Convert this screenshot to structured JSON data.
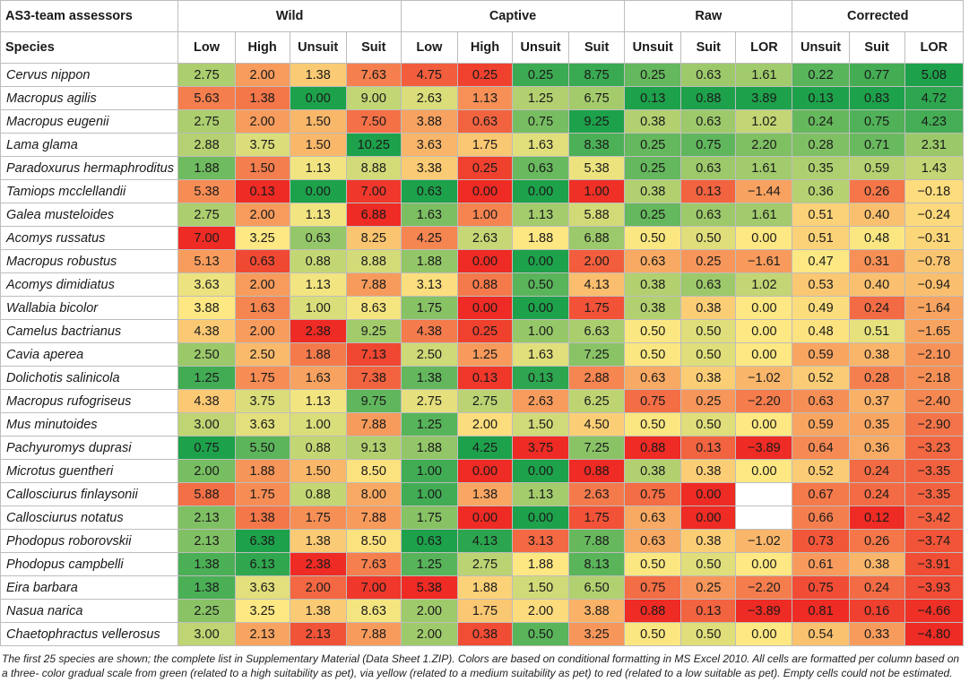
{
  "table": {
    "header_label": "AS3-team assessors",
    "groups": [
      "Wild",
      "Captive",
      "Raw",
      "Corrected"
    ],
    "columns": [
      "Species",
      "Low",
      "High",
      "Unsuit",
      "Suit",
      "Low",
      "High",
      "Unsuit",
      "Suit",
      "Unsuit",
      "Suit",
      "LOR",
      "Unsuit",
      "Suit",
      "LOR"
    ],
    "rows": [
      {
        "species": "Cervus nippon",
        "values": [
          "2.75",
          "2.00",
          "1.38",
          "7.63",
          "4.75",
          "0.25",
          "0.25",
          "8.75",
          "0.25",
          "0.63",
          "1.61",
          "0.22",
          "0.77",
          "5.08"
        ]
      },
      {
        "species": "Macropus agilis",
        "values": [
          "5.63",
          "1.38",
          "0.00",
          "9.00",
          "2.63",
          "1.13",
          "1.25",
          "6.75",
          "0.13",
          "0.88",
          "3.89",
          "0.13",
          "0.83",
          "4.72"
        ]
      },
      {
        "species": "Macropus eugenii",
        "values": [
          "2.75",
          "2.00",
          "1.50",
          "7.50",
          "3.88",
          "0.63",
          "0.75",
          "9.25",
          "0.38",
          "0.63",
          "1.02",
          "0.24",
          "0.75",
          "4.23"
        ]
      },
      {
        "species": "Lama glama",
        "values": [
          "2.88",
          "3.75",
          "1.50",
          "10.25",
          "3.63",
          "1.75",
          "1.63",
          "8.38",
          "0.25",
          "0.75",
          "2.20",
          "0.28",
          "0.71",
          "2.31"
        ]
      },
      {
        "species": "Paradoxurus hermaphroditus",
        "values": [
          "1.88",
          "1.50",
          "1.13",
          "8.88",
          "3.38",
          "0.25",
          "0.63",
          "5.38",
          "0.25",
          "0.63",
          "1.61",
          "0.35",
          "0.59",
          "1.43"
        ]
      },
      {
        "species": "Tamiops mcclellandii",
        "values": [
          "5.38",
          "0.13",
          "0.00",
          "7.00",
          "0.63",
          "0.00",
          "0.00",
          "1.00",
          "0.38",
          "0.13",
          "−1.44",
          "0.36",
          "0.26",
          "−0.18"
        ]
      },
      {
        "species": "Galea musteloides",
        "values": [
          "2.75",
          "2.00",
          "1.13",
          "6.88",
          "1.63",
          "1.00",
          "1.13",
          "5.88",
          "0.25",
          "0.63",
          "1.61",
          "0.51",
          "0.40",
          "−0.24"
        ]
      },
      {
        "species": "Acomys russatus",
        "values": [
          "7.00",
          "3.25",
          "0.63",
          "8.25",
          "4.25",
          "2.63",
          "1.88",
          "6.88",
          "0.50",
          "0.50",
          "0.00",
          "0.51",
          "0.48",
          "−0.31"
        ]
      },
      {
        "species": "Macropus robustus",
        "values": [
          "5.13",
          "0.63",
          "0.88",
          "8.88",
          "1.88",
          "0.00",
          "0.00",
          "2.00",
          "0.63",
          "0.25",
          "−1.61",
          "0.47",
          "0.31",
          "−0.78"
        ]
      },
      {
        "species": "Acomys dimidiatus",
        "values": [
          "3.63",
          "2.00",
          "1.13",
          "7.88",
          "3.13",
          "0.88",
          "0.50",
          "4.13",
          "0.38",
          "0.63",
          "1.02",
          "0.53",
          "0.40",
          "−0.94"
        ]
      },
      {
        "species": "Wallabia bicolor",
        "values": [
          "3.88",
          "1.63",
          "1.00",
          "8.63",
          "1.75",
          "0.00",
          "0.00",
          "1.75",
          "0.38",
          "0.38",
          "0.00",
          "0.49",
          "0.24",
          "−1.64"
        ]
      },
      {
        "species": "Camelus bactrianus",
        "values": [
          "4.38",
          "2.00",
          "2.38",
          "9.25",
          "4.38",
          "0.25",
          "1.00",
          "6.63",
          "0.50",
          "0.50",
          "0.00",
          "0.48",
          "0.51",
          "−1.65"
        ]
      },
      {
        "species": "Cavia aperea",
        "values": [
          "2.50",
          "2.50",
          "1.88",
          "7.13",
          "2.50",
          "1.25",
          "1.63",
          "7.25",
          "0.50",
          "0.50",
          "0.00",
          "0.59",
          "0.38",
          "−2.10"
        ]
      },
      {
        "species": "Dolichotis salinicola",
        "values": [
          "1.25",
          "1.75",
          "1.63",
          "7.38",
          "1.38",
          "0.13",
          "0.13",
          "2.88",
          "0.63",
          "0.38",
          "−1.02",
          "0.52",
          "0.28",
          "−2.18"
        ]
      },
      {
        "species": "Macropus rufogriseus",
        "values": [
          "4.38",
          "3.75",
          "1.13",
          "9.75",
          "2.75",
          "2.75",
          "2.63",
          "6.25",
          "0.75",
          "0.25",
          "−2.20",
          "0.63",
          "0.37",
          "−2.40"
        ]
      },
      {
        "species": "Mus minutoides",
        "values": [
          "3.00",
          "3.63",
          "1.00",
          "7.88",
          "1.25",
          "2.00",
          "1.50",
          "4.50",
          "0.50",
          "0.50",
          "0.00",
          "0.59",
          "0.35",
          "−2.90"
        ]
      },
      {
        "species": "Pachyuromys duprasi",
        "values": [
          "0.75",
          "5.50",
          "0.88",
          "9.13",
          "1.88",
          "4.25",
          "3.75",
          "7.25",
          "0.88",
          "0.13",
          "−3.89",
          "0.64",
          "0.36",
          "−3.23"
        ]
      },
      {
        "species": "Microtus guentheri",
        "values": [
          "2.00",
          "1.88",
          "1.50",
          "8.50",
          "1.00",
          "0.00",
          "0.00",
          "0.88",
          "0.38",
          "0.38",
          "0.00",
          "0.52",
          "0.24",
          "−3.35"
        ]
      },
      {
        "species": "Callosciurus finlaysonii",
        "values": [
          "5.88",
          "1.75",
          "0.88",
          "8.00",
          "1.00",
          "1.38",
          "1.13",
          "2.63",
          "0.75",
          "0.00",
          "",
          "0.67",
          "0.24",
          "−3.35"
        ]
      },
      {
        "species": "Callosciurus notatus",
        "values": [
          "2.13",
          "1.38",
          "1.75",
          "7.88",
          "1.75",
          "0.00",
          "0.00",
          "1.75",
          "0.63",
          "0.00",
          "",
          "0.66",
          "0.12",
          "−3.42"
        ]
      },
      {
        "species": "Phodopus roborovskii",
        "values": [
          "2.13",
          "6.38",
          "1.38",
          "8.50",
          "0.63",
          "4.13",
          "3.13",
          "7.88",
          "0.63",
          "0.38",
          "−1.02",
          "0.73",
          "0.26",
          "−3.74"
        ]
      },
      {
        "species": "Phodopus campbelli",
        "values": [
          "1.38",
          "6.13",
          "2.38",
          "7.63",
          "1.25",
          "2.75",
          "1.88",
          "8.13",
          "0.50",
          "0.50",
          "0.00",
          "0.61",
          "0.38",
          "−3.91"
        ]
      },
      {
        "species": "Eira barbara",
        "values": [
          "1.38",
          "3.63",
          "2.00",
          "7.00",
          "5.38",
          "1.88",
          "1.50",
          "6.50",
          "0.75",
          "0.25",
          "−2.20",
          "0.75",
          "0.24",
          "−3.93"
        ]
      },
      {
        "species": "Nasua narica",
        "values": [
          "2.25",
          "3.25",
          "1.38",
          "8.63",
          "2.00",
          "1.75",
          "2.00",
          "3.88",
          "0.88",
          "0.13",
          "−3.89",
          "0.81",
          "0.16",
          "−4.66"
        ]
      },
      {
        "species": "Chaetophractus vellerosus",
        "values": [
          "3.00",
          "2.13",
          "2.13",
          "7.88",
          "2.00",
          "0.38",
          "0.50",
          "3.25",
          "0.50",
          "0.50",
          "0.00",
          "0.54",
          "0.33",
          "−4.80"
        ]
      }
    ],
    "colors": {
      "green": "#1ea14b",
      "yellow": "#fde883",
      "red": "#ee2b24",
      "empty": "#ffffff"
    },
    "color_direction": [
      "low-good",
      "high-good",
      "low-good",
      "high-good",
      "low-good",
      "high-good",
      "low-good",
      "high-good",
      "low-good",
      "high-good",
      "high-good",
      "low-good",
      "high-good",
      "high-good"
    ]
  },
  "footnote": "The first 25 species are shown; the complete list in Supplementary Material (Data Sheet 1.ZIP). Colors are based on conditional formatting in MS Excel 2010. All cells are formatted per column based on a three- color gradual scale from green (related to a high suitability as pet), via yellow (related to a medium suitability as pet) to red (related to a low suitable as pet). Empty cells could not be estimated."
}
